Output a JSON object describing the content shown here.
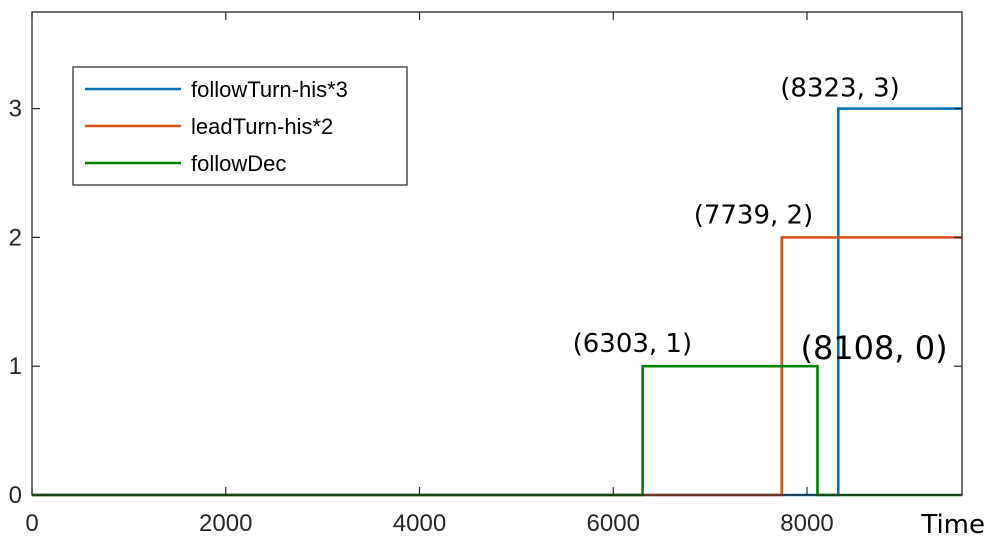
{
  "chart_data": {
    "type": "line",
    "step": true,
    "xlabel": "Time",
    "ylabel": "",
    "xlim": [
      0,
      9600
    ],
    "ylim": [
      0,
      3.75
    ],
    "xticks": [
      0,
      2000,
      4000,
      6000,
      8000
    ],
    "xtick_labels": [
      "0",
      "2000",
      "4000",
      "6000",
      "8000"
    ],
    "yticks": [
      0,
      1,
      2,
      3
    ],
    "ytick_labels": [
      "0",
      "1",
      "2",
      "3"
    ],
    "grid": false,
    "legend_position": "top-left",
    "series": [
      {
        "name": "followTurn-his*3",
        "color": "#0072BD",
        "x": [
          0,
          8323,
          8323,
          9600
        ],
        "y": [
          0,
          0,
          3,
          3
        ]
      },
      {
        "name": "leadTurn-his*2",
        "color": "#D95319",
        "x": [
          0,
          7739,
          7739,
          9600
        ],
        "y": [
          0,
          0,
          2,
          2
        ]
      },
      {
        "name": "followDec",
        "color": "#008000",
        "x": [
          0,
          6303,
          6303,
          8108,
          8108,
          9600
        ],
        "y": [
          0,
          0,
          1,
          1,
          0,
          0
        ]
      }
    ],
    "annotations": [
      {
        "text": "(8323, 3)",
        "x": 8323,
        "y": 3
      },
      {
        "text": "(7739, 2)",
        "x": 7739,
        "y": 2
      },
      {
        "text": "(6303, 1)",
        "x": 6303,
        "y": 1
      },
      {
        "text": "(8108, 0)",
        "x": 8108,
        "y": 0
      }
    ]
  }
}
